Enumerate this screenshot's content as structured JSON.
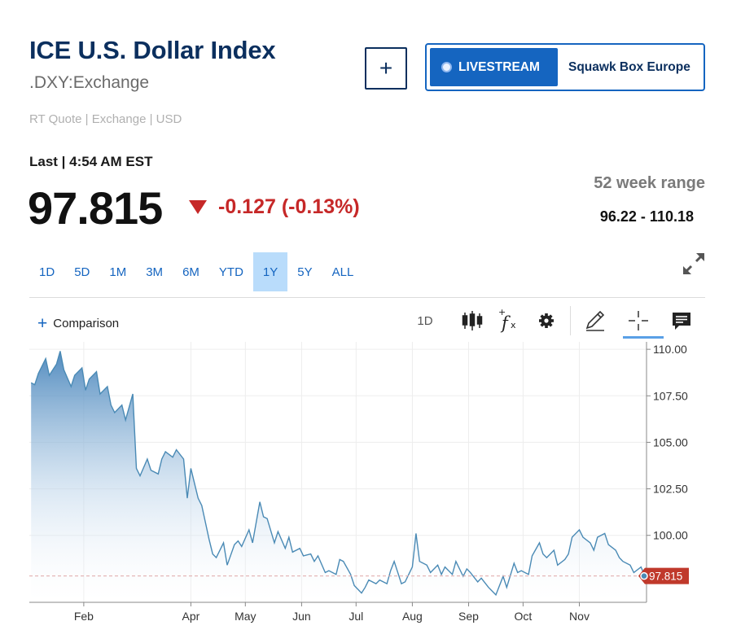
{
  "header": {
    "title": "ICE U.S. Dollar Index",
    "symbol": ".DXY:Exchange",
    "quote_info": "RT Quote | Exchange | USD",
    "add_button": "+"
  },
  "livestream": {
    "tag": "LIVESTREAM",
    "show": "Squawk Box Europe"
  },
  "quote": {
    "last_label": "Last | 4:54 AM EST",
    "price": "97.815",
    "change": "-0.127 (-0.13%)",
    "direction": "down",
    "change_color": "#c62828"
  },
  "range": {
    "label": "52 week range",
    "value": "96.22 - 110.18"
  },
  "periods": [
    "1D",
    "5D",
    "1M",
    "3M",
    "6M",
    "YTD",
    "1Y",
    "5Y",
    "ALL"
  ],
  "active_period": "1Y",
  "toolbar": {
    "comparison_label": "Comparison",
    "interval_label": "1D",
    "icons": [
      "candlestick-icon",
      "function-icon",
      "gear-icon",
      "pencil-icon",
      "crosshair-icon",
      "comment-icon"
    ]
  },
  "colors": {
    "brand": "#0b2f5e",
    "accent": "#1565c0",
    "line": "#4a8ab5",
    "price_tag": "#c0392b"
  },
  "chart_data": {
    "type": "area",
    "y_ticks": [
      "110.00",
      "107.50",
      "105.00",
      "102.50",
      "100.00"
    ],
    "x_ticks": [
      "Feb",
      "Apr",
      "May",
      "Jun",
      "Jul",
      "Aug",
      "Sep",
      "Oct",
      "Nov"
    ],
    "last_price_label": "97.815",
    "last_value": 97.815,
    "ylim": [
      96.4,
      110.4
    ],
    "grid": true,
    "x": [
      "Jan 3",
      "Jan 5",
      "Jan 7",
      "Jan 11",
      "Jan 13",
      "Jan 17",
      "Jan 19",
      "Jan 21",
      "Jan 25",
      "Jan 27",
      "Jan 31",
      "Feb 2",
      "Feb 4",
      "Feb 8",
      "Feb 10",
      "Feb 14",
      "Feb 16",
      "Feb 18",
      "Feb 22",
      "Feb 24",
      "Feb 28",
      "Mar 2",
      "Mar 4",
      "Mar 8",
      "Mar 10",
      "Mar 14",
      "Mar 16",
      "Mar 18",
      "Mar 22",
      "Mar 24",
      "Mar 28",
      "Mar 30",
      "Apr 1",
      "Apr 5",
      "Apr 7",
      "Apr 11",
      "Apr 13",
      "Apr 15",
      "Apr 19",
      "Apr 21",
      "Apr 25",
      "Apr 27",
      "Apr 29",
      "May 3",
      "May 5",
      "May 9",
      "May 11",
      "May 13",
      "May 17",
      "May 19",
      "May 23",
      "May 25",
      "May 27",
      "May 31",
      "Jun 2",
      "Jun 6",
      "Jun 8",
      "Jun 10",
      "Jun 14",
      "Jun 16",
      "Jun 20",
      "Jun 22",
      "Jun 24",
      "Jun 28",
      "Jun 30",
      "Jul 4",
      "Jul 6",
      "Jul 8",
      "Jul 12",
      "Jul 14",
      "Jul 18",
      "Jul 20",
      "Jul 22",
      "Jul 26",
      "Jul 28",
      "Aug 1",
      "Aug 3",
      "Aug 5",
      "Aug 9",
      "Aug 11",
      "Aug 15",
      "Aug 17",
      "Aug 19",
      "Aug 23",
      "Aug 25",
      "Aug 29",
      "Aug 31",
      "Sep 2",
      "Sep 6",
      "Sep 8",
      "Sep 12",
      "Sep 14",
      "Sep 16",
      "Sep 20",
      "Sep 22",
      "Sep 26",
      "Sep 28",
      "Sep 30",
      "Oct 4",
      "Oct 6",
      "Oct 10",
      "Oct 12",
      "Oct 14",
      "Oct 18",
      "Oct 20",
      "Oct 24",
      "Oct 26",
      "Oct 28",
      "Nov 1",
      "Nov 3",
      "Nov 7",
      "Nov 9",
      "Nov 11",
      "Nov 15",
      "Nov 17",
      "Nov 21",
      "Nov 23",
      "Nov 25",
      "Nov 29",
      "Dec 1",
      "Dec 5",
      "Dec 7"
    ],
    "values": [
      108.2,
      108.1,
      108.7,
      109.5,
      108.6,
      109.2,
      109.9,
      108.9,
      108.0,
      108.6,
      109.0,
      107.8,
      108.4,
      108.8,
      107.6,
      108.0,
      107.0,
      106.6,
      107.0,
      106.2,
      107.6,
      103.6,
      103.2,
      104.1,
      103.5,
      103.3,
      104.1,
      104.5,
      104.2,
      104.6,
      104.1,
      102.0,
      103.6,
      102.0,
      101.6,
      99.8,
      99.0,
      98.8,
      99.6,
      98.4,
      99.5,
      99.7,
      99.4,
      100.3,
      99.6,
      101.8,
      101.0,
      100.9,
      99.6,
      100.2,
      99.3,
      99.9,
      99.1,
      99.3,
      98.9,
      99.0,
      98.6,
      98.9,
      98.0,
      98.1,
      97.9,
      98.7,
      98.6,
      97.9,
      97.3,
      96.9,
      97.2,
      97.6,
      97.4,
      97.6,
      97.4,
      98.1,
      98.6,
      97.4,
      97.5,
      98.3,
      100.1,
      98.6,
      98.4,
      98.0,
      98.4,
      97.9,
      98.3,
      97.9,
      98.6,
      97.8,
      98.2,
      98.0,
      97.5,
      97.7,
      97.2,
      97.0,
      96.8,
      97.8,
      97.2,
      98.5,
      98.0,
      98.1,
      97.9,
      98.9,
      99.6,
      99.0,
      98.8,
      99.2,
      98.4,
      98.7,
      99.0,
      99.9,
      100.3,
      99.9,
      99.6,
      99.2,
      99.9,
      100.1,
      99.5,
      99.2,
      98.8,
      98.6,
      98.4,
      98.0,
      98.3,
      97.815
    ]
  }
}
